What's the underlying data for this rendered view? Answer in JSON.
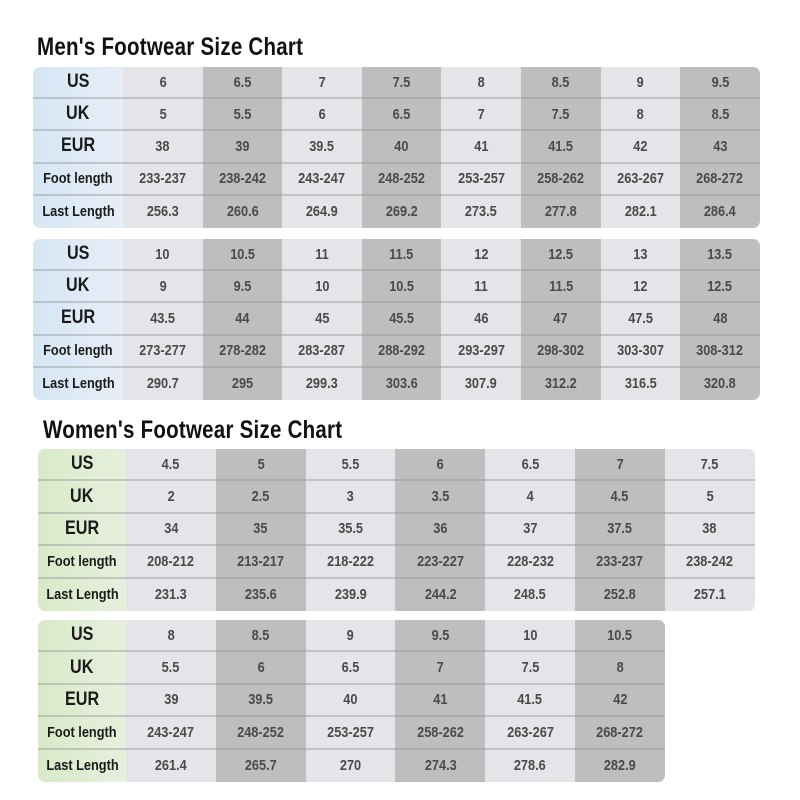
{
  "men": {
    "title": "Men's Footwear Size Chart",
    "row_labels": [
      "US",
      "UK",
      "EUR",
      "Foot length",
      "Last Length"
    ],
    "tables": [
      {
        "rows": [
          [
            "6",
            "6.5",
            "7",
            "7.5",
            "8",
            "8.5",
            "9",
            "9.5"
          ],
          [
            "5",
            "5.5",
            "6",
            "6.5",
            "7",
            "7.5",
            "8",
            "8.5"
          ],
          [
            "38",
            "39",
            "39.5",
            "40",
            "41",
            "41.5",
            "42",
            "43"
          ],
          [
            "233-237",
            "238-242",
            "243-247",
            "248-252",
            "253-257",
            "258-262",
            "263-267",
            "268-272"
          ],
          [
            "256.3",
            "260.6",
            "264.9",
            "269.2",
            "273.5",
            "277.8",
            "282.1",
            "286.4"
          ]
        ]
      },
      {
        "rows": [
          [
            "10",
            "10.5",
            "11",
            "11.5",
            "12",
            "12.5",
            "13",
            "13.5"
          ],
          [
            "9",
            "9.5",
            "10",
            "10.5",
            "11",
            "11.5",
            "12",
            "12.5"
          ],
          [
            "43.5",
            "44",
            "45",
            "45.5",
            "46",
            "47",
            "47.5",
            "48"
          ],
          [
            "273-277",
            "278-282",
            "283-287",
            "288-292",
            "293-297",
            "298-302",
            "303-307",
            "308-312"
          ],
          [
            "290.7",
            "295",
            "299.3",
            "303.6",
            "307.9",
            "312.2",
            "316.5",
            "320.8"
          ]
        ]
      }
    ]
  },
  "women": {
    "title": "Women's Footwear Size Chart",
    "row_labels": [
      "US",
      "UK",
      "EUR",
      "Foot length",
      "Last Length"
    ],
    "tables": [
      {
        "rows": [
          [
            "4.5",
            "5",
            "5.5",
            "6",
            "6.5",
            "7",
            "7.5"
          ],
          [
            "2",
            "2.5",
            "3",
            "3.5",
            "4",
            "4.5",
            "5"
          ],
          [
            "34",
            "35",
            "35.5",
            "36",
            "37",
            "37.5",
            "38"
          ],
          [
            "208-212",
            "213-217",
            "218-222",
            "223-227",
            "228-232",
            "233-237",
            "238-242"
          ],
          [
            "231.3",
            "235.6",
            "239.9",
            "244.2",
            "248.5",
            "252.8",
            "257.1"
          ]
        ]
      },
      {
        "rows": [
          [
            "8",
            "8.5",
            "9",
            "9.5",
            "10",
            "10.5"
          ],
          [
            "5.5",
            "6",
            "6.5",
            "7",
            "7.5",
            "8"
          ],
          [
            "39",
            "39.5",
            "40",
            "41",
            "41.5",
            "42"
          ],
          [
            "243-247",
            "248-252",
            "253-257",
            "258-262",
            "263-267",
            "268-272"
          ],
          [
            "261.4",
            "265.7",
            "270",
            "274.3",
            "278.6",
            "282.9"
          ]
        ]
      }
    ]
  },
  "colors": {
    "men_label_bg": "#d6e6f5",
    "women_label_bg": "#d8eac8",
    "light_cell": "#e4e5e8",
    "dark_cell": "#bebebe"
  }
}
